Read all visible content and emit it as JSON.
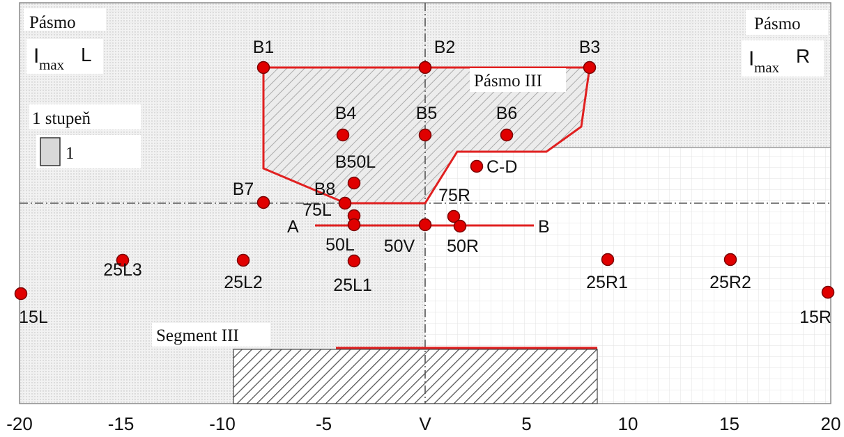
{
  "chart_data": {
    "type": "diagram",
    "x_ticks": [
      {
        "value": -20,
        "label": "-20"
      },
      {
        "value": -15,
        "label": "-15"
      },
      {
        "value": -10,
        "label": "-10"
      },
      {
        "value": -5,
        "label": "-5"
      },
      {
        "value": 0,
        "label": "V"
      },
      {
        "value": 5,
        "label": "5"
      },
      {
        "value": 10,
        "label": "10"
      },
      {
        "value": 15,
        "label": "15"
      },
      {
        "value": 20,
        "label": "20"
      }
    ],
    "zones": {
      "imax_left": {
        "title": "Pásmo",
        "symbol": "I",
        "subscript": "max",
        "side": "L"
      },
      "imax_right": {
        "title": "Pásmo",
        "symbol": "I",
        "subscript": "max",
        "side": "R"
      },
      "zone_iii": {
        "label": "Pásmo III"
      },
      "segment_iii": {
        "label": "Segment III"
      }
    },
    "legend": {
      "title": "1 stupeň",
      "swatch_label": "1"
    },
    "axis_labels": {
      "a": "A",
      "b": "B"
    },
    "points": [
      {
        "id": "B1",
        "label": "B1"
      },
      {
        "id": "B2",
        "label": "B2"
      },
      {
        "id": "B3",
        "label": "B3"
      },
      {
        "id": "B4",
        "label": "B4"
      },
      {
        "id": "B5",
        "label": "B5"
      },
      {
        "id": "B6",
        "label": "B6"
      },
      {
        "id": "B50L",
        "label": "B50L"
      },
      {
        "id": "C-D",
        "label": "C-D"
      },
      {
        "id": "B7",
        "label": "B7"
      },
      {
        "id": "B8",
        "label": "B8"
      },
      {
        "id": "75R",
        "label": "75R"
      },
      {
        "id": "75L",
        "label": "75L"
      },
      {
        "id": "50L",
        "label": "50L"
      },
      {
        "id": "50V",
        "label": "50V"
      },
      {
        "id": "50R",
        "label": "50R"
      },
      {
        "id": "25L3",
        "label": "25L3"
      },
      {
        "id": "25L2",
        "label": "25L2"
      },
      {
        "id": "25L1",
        "label": "25L1"
      },
      {
        "id": "25R1",
        "label": "25R1"
      },
      {
        "id": "25R2",
        "label": "25R2"
      },
      {
        "id": "15L",
        "label": "15L"
      },
      {
        "id": "15R",
        "label": "15R"
      }
    ],
    "colors": {
      "marker": "#e00000",
      "marker_stroke": "#7a0000",
      "boundary": "#e02020",
      "grid": "#c8c8c8",
      "hatch": "#555555"
    }
  }
}
